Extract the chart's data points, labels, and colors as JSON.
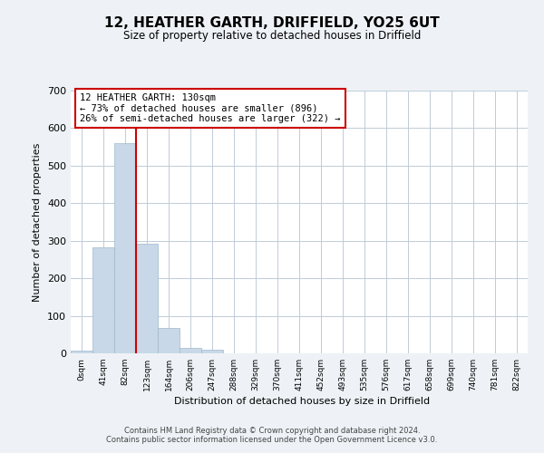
{
  "title": "12, HEATHER GARTH, DRIFFIELD, YO25 6UT",
  "subtitle": "Size of property relative to detached houses in Driffield",
  "xlabel": "Distribution of detached houses by size in Driffield",
  "ylabel": "Number of detached properties",
  "bin_labels": [
    "0sqm",
    "41sqm",
    "82sqm",
    "123sqm",
    "164sqm",
    "206sqm",
    "247sqm",
    "288sqm",
    "329sqm",
    "370sqm",
    "411sqm",
    "452sqm",
    "493sqm",
    "535sqm",
    "576sqm",
    "617sqm",
    "658sqm",
    "699sqm",
    "740sqm",
    "781sqm",
    "822sqm"
  ],
  "bar_values": [
    7,
    283,
    560,
    293,
    68,
    14,
    9,
    0,
    0,
    0,
    0,
    0,
    0,
    0,
    0,
    0,
    0,
    0,
    0,
    0,
    0
  ],
  "bar_color": "#c8d8e8",
  "bar_edge_color": "#a0b8cc",
  "vline_x": 3,
  "vline_color": "#cc0000",
  "ylim": [
    0,
    700
  ],
  "yticks": [
    0,
    100,
    200,
    300,
    400,
    500,
    600,
    700
  ],
  "annotation_title": "12 HEATHER GARTH: 130sqm",
  "annotation_line1": "← 73% of detached houses are smaller (896)",
  "annotation_line2": "26% of semi-detached houses are larger (322) →",
  "annotation_box_color": "#ffffff",
  "annotation_box_edge_color": "#cc0000",
  "footer1": "Contains HM Land Registry data © Crown copyright and database right 2024.",
  "footer2": "Contains public sector information licensed under the Open Government Licence v3.0.",
  "background_color": "#eef2f6",
  "plot_background_color": "#ffffff",
  "grid_color": "#c0ccd8"
}
